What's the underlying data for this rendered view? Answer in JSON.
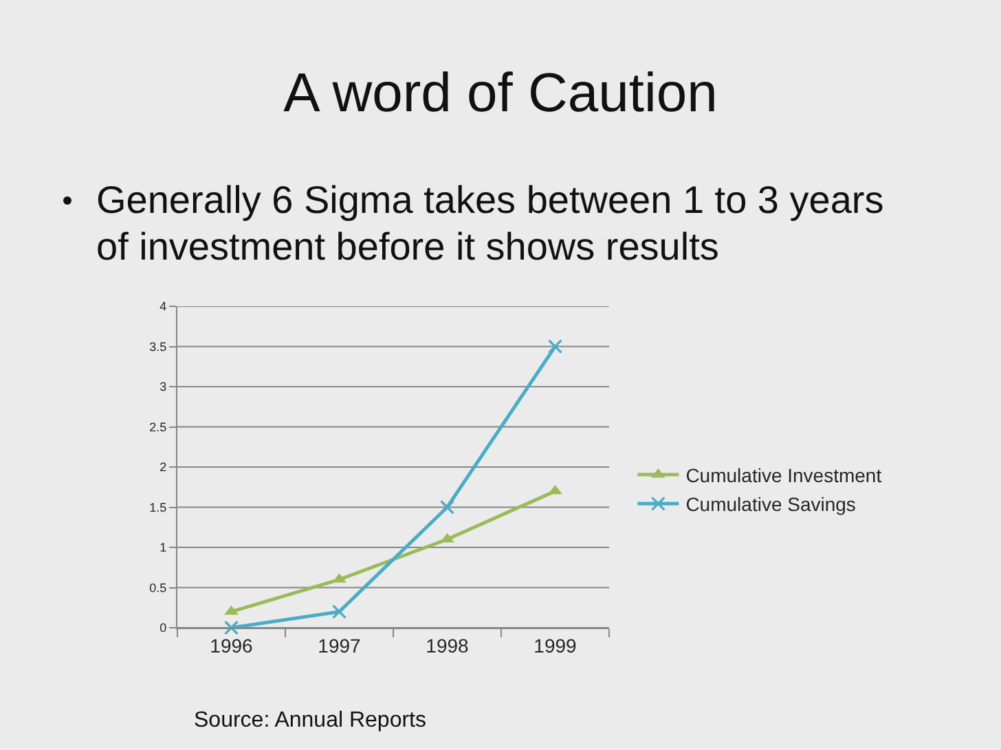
{
  "chart_data": {
    "type": "line",
    "title": "A word of Caution",
    "subtitle": "Generally 6 Sigma takes between 1 to 3 years of investment before it shows results",
    "annotations": [
      "Source: Annual Reports"
    ],
    "categories": [
      "1996",
      "1997",
      "1998",
      "1999"
    ],
    "series": [
      {
        "name": "Cumulative Investment",
        "color": "#9bbb59",
        "marker": "triangle",
        "values": [
          0.2,
          0.6,
          1.1,
          1.7
        ]
      },
      {
        "name": "Cumulative Savings",
        "color": "#4bacc6",
        "marker": "cross",
        "values": [
          0,
          0.2,
          1.5,
          3.5
        ]
      }
    ],
    "ylim": [
      0,
      4
    ],
    "yticks": [
      0,
      0.5,
      1,
      1.5,
      2,
      2.5,
      3,
      3.5,
      4
    ],
    "grid": "y",
    "legend": "right",
    "line_style": "solid"
  }
}
